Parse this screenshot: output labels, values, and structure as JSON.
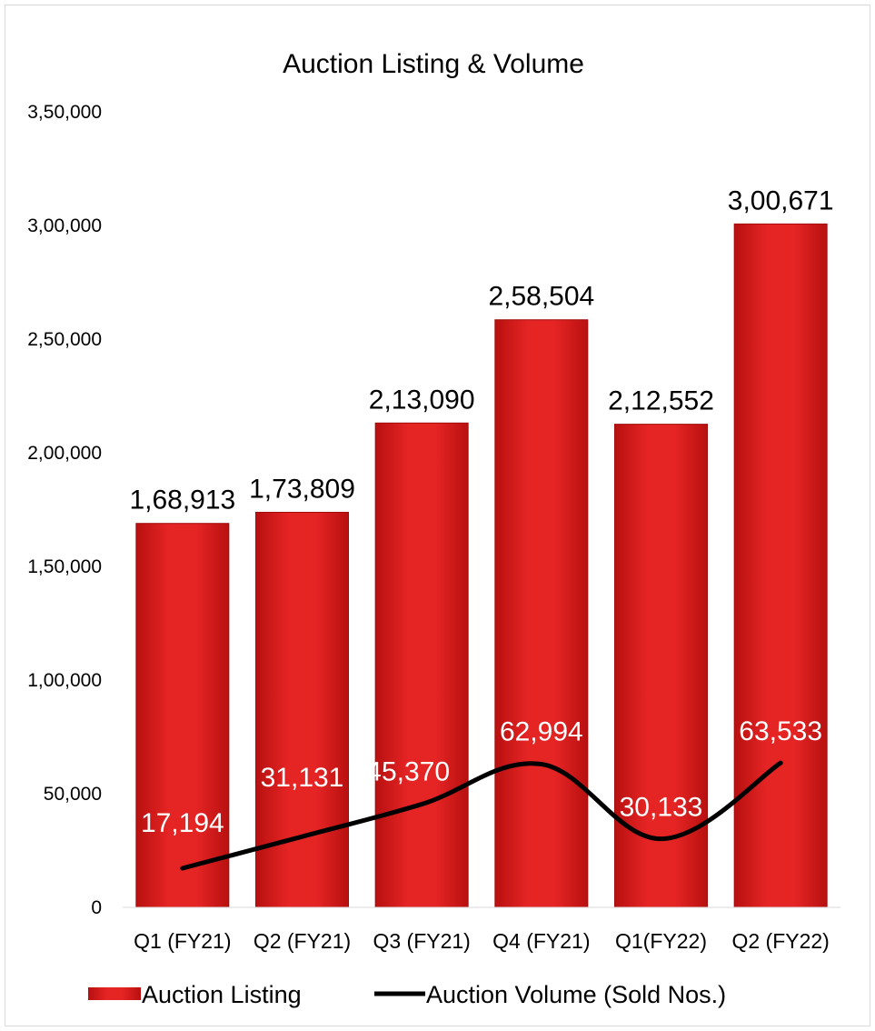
{
  "chart_data": {
    "type": "bar",
    "title": "Auction Listing & Volume",
    "categories": [
      "Q1 (FY21)",
      "Q2 (FY21)",
      "Q3 (FY21)",
      "Q4 (FY21)",
      "Q1(FY22)",
      "Q2 (FY22)"
    ],
    "series": [
      {
        "name": "Auction Listing",
        "type": "bar",
        "color": "#e02020",
        "values": [
          168913,
          173809,
          213090,
          258504,
          212552,
          300671
        ],
        "labels": [
          "1,68,913",
          "1,73,809",
          "2,13,090",
          "2,58,504",
          "2,12,552",
          "3,00,671"
        ]
      },
      {
        "name": "Auction Volume (Sold Nos.)",
        "type": "line",
        "color": "#000000",
        "values": [
          17194,
          31131,
          45370,
          62994,
          30133,
          63533
        ],
        "labels": [
          "17,194",
          "31,131",
          "45,370",
          "62,994",
          "30,133",
          "63,533"
        ]
      }
    ],
    "ylim": [
      0,
      350000
    ],
    "yticks": [
      0,
      50000,
      100000,
      150000,
      200000,
      250000,
      300000,
      350000
    ],
    "ytick_labels": [
      "0",
      "50,000",
      "1,00,000",
      "1,50,000",
      "2,00,000",
      "2,50,000",
      "3,00,000",
      "3,50,000"
    ],
    "legend": "bottom",
    "grid": false
  }
}
